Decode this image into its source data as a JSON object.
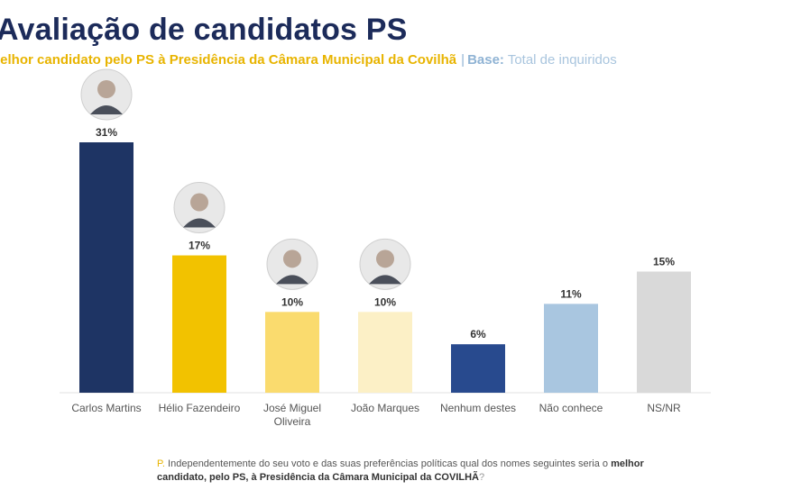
{
  "header": {
    "title": "Avaliação de candidatos PS",
    "subtitle_question": "lelhor candidato pelo PS à Presidência da Câmara Municipal da Covilhã",
    "subtitle_separator": "|",
    "subtitle_base_label": "Base:",
    "subtitle_base_value": "Total de inquiridos"
  },
  "footnote": {
    "prefix": "P.",
    "text_1": "Independentemente do seu voto e das suas preferências políticas qual dos nomes seguintes seria o",
    "bold_1": "melhor",
    "bold_2": "candidato, pelo PS, à Presidência da Câmara Municipal da COVILHÃ",
    "suffix": "?"
  },
  "colors": {
    "title": "#1c2b5a",
    "accent_yellow": "#e8b400",
    "base_blue": "#8fb3d4"
  },
  "chart_data": {
    "type": "bar",
    "categories": [
      "Carlos Martins",
      "Hélio Fazendeiro",
      "José Miguel Oliveira",
      "João Marques",
      "Nenhum destes",
      "Não conhece",
      "NS/NR"
    ],
    "category_lines": [
      [
        "Carlos Martins"
      ],
      [
        "Hélio Fazendeiro"
      ],
      [
        "José Miguel",
        "Oliveira"
      ],
      [
        "João Marques"
      ],
      [
        "Nenhum destes"
      ],
      [
        "Não conhece"
      ],
      [
        "NS/NR"
      ]
    ],
    "values": [
      31,
      17,
      10,
      10,
      6,
      11,
      15
    ],
    "value_labels": [
      "31%",
      "17%",
      "10%",
      "10%",
      "6%",
      "11%",
      "15%"
    ],
    "unit": "%",
    "bar_colors": [
      "#1e3464",
      "#f2c200",
      "#fadb6e",
      "#fcf0c6",
      "#284a8e",
      "#a9c6e0",
      "#d9d9d9"
    ],
    "photo_bars": [
      0,
      1,
      2,
      3
    ],
    "ylim": [
      0,
      31
    ],
    "xlabel": "",
    "ylabel": "",
    "grid": false,
    "legend": "none"
  }
}
